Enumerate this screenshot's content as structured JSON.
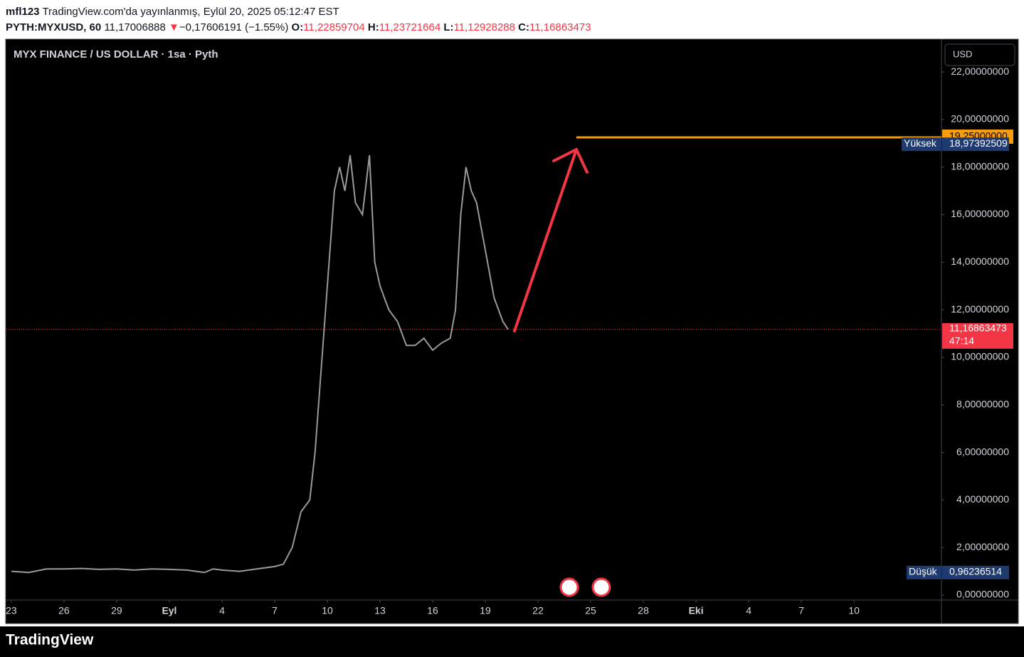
{
  "header": {
    "user": "mfl123",
    "published": "TradingView.com'da yayınlanmış, Eylül 20, 2025 05:12:47 EST",
    "symbol": "PYTH:MYXUSD, 60",
    "price": "11,17006888",
    "change": "−0,17606191 (−1.55%)",
    "o_label": "O:",
    "o": "11,22859704",
    "h_label": "H:",
    "h": "11,23721664",
    "l_label": "L:",
    "l": "11,12928288",
    "c_label": "C:",
    "c": "11,16863473"
  },
  "footer": {
    "logo": "TradingView"
  },
  "chart_data": {
    "type": "line",
    "title": "MYX FINANCE / US DOLLAR · 1sa · Pyth",
    "currency": "USD",
    "x": [
      0,
      1,
      2,
      3,
      4,
      5,
      6,
      7,
      8,
      9,
      10,
      11,
      11.5,
      12,
      13,
      14,
      15,
      15.5,
      16,
      16.5,
      17,
      17.3,
      17.6,
      17.9,
      18.1,
      18.4,
      18.7,
      19,
      19.3,
      19.6,
      20,
      20.4,
      20.7,
      21,
      21.5,
      22,
      22.5,
      23,
      23.5,
      24,
      24.5,
      25,
      25.3,
      25.6,
      25.9,
      26.2,
      26.5,
      27,
      27.5,
      28,
      28.3
    ],
    "series": [
      {
        "name": "MYXUSD",
        "color": "#9a9a9a",
        "values": [
          1.0,
          0.95,
          1.1,
          1.1,
          1.12,
          1.08,
          1.1,
          1.05,
          1.1,
          1.08,
          1.05,
          0.95,
          1.1,
          1.05,
          1.0,
          1.1,
          1.2,
          1.3,
          2.0,
          3.5,
          4.0,
          6,
          9,
          12,
          14,
          17,
          18,
          17,
          18.5,
          16.5,
          16,
          18.5,
          14,
          13,
          12,
          11.5,
          10.5,
          10.5,
          10.8,
          10.3,
          10.6,
          10.8,
          12,
          16,
          18,
          17,
          16.5,
          14.5,
          12.5,
          11.5,
          11.17
        ]
      }
    ],
    "xlim": [
      -0.28,
      52.98
    ],
    "xticks": [
      {
        "value": 0,
        "label": "23"
      },
      {
        "value": 3,
        "label": "26"
      },
      {
        "value": 6,
        "label": "29"
      },
      {
        "value": 9,
        "label": "Eyl"
      },
      {
        "value": 12,
        "label": "4"
      },
      {
        "value": 15,
        "label": "7"
      },
      {
        "value": 18,
        "label": "10"
      },
      {
        "value": 21,
        "label": "13"
      },
      {
        "value": 24,
        "label": "16"
      },
      {
        "value": 27,
        "label": "19"
      },
      {
        "value": 30,
        "label": "22"
      },
      {
        "value": 33,
        "label": "25"
      },
      {
        "value": 36,
        "label": "28"
      },
      {
        "value": 39,
        "label": "Eki"
      },
      {
        "value": 42,
        "label": "4"
      },
      {
        "value": 45,
        "label": "7"
      },
      {
        "value": 48,
        "label": "10"
      }
    ],
    "ylim": [
      -0.21,
      23.35
    ],
    "yticks": [
      {
        "value": 0,
        "label": "0,00000000"
      },
      {
        "value": 2,
        "label": "2,00000000"
      },
      {
        "value": 4,
        "label": "4,00000000"
      },
      {
        "value": 6,
        "label": "6,00000000"
      },
      {
        "value": 8,
        "label": "8,00000000"
      },
      {
        "value": 10,
        "label": "10,00000000"
      },
      {
        "value": 12,
        "label": "12,00000000"
      },
      {
        "value": 14,
        "label": "14,00000000"
      },
      {
        "value": 16,
        "label": "16,00000000"
      },
      {
        "value": 18,
        "label": "18,00000000"
      },
      {
        "value": 20,
        "label": "20,00000000"
      },
      {
        "value": 22,
        "label": "22,00000000"
      }
    ],
    "hline": {
      "value": 19.25,
      "label": "19,25000000",
      "color": "#f59d0d"
    },
    "high": {
      "name": "Yüksek",
      "value": 18.97392509,
      "label": "18,97392509"
    },
    "low": {
      "name": "Düşük",
      "value": 0.96236514,
      "label": "0,96236514"
    },
    "last": {
      "value": 11.16863473,
      "label": "11,16863473",
      "countdown": "47:14",
      "color": "#f23645"
    }
  }
}
